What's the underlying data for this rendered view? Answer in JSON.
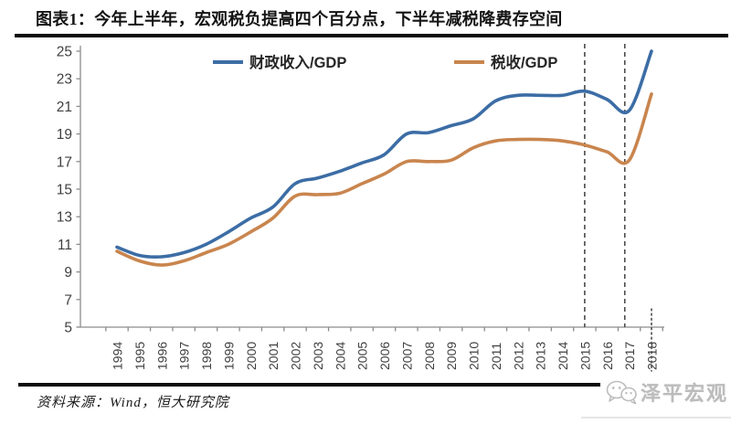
{
  "header": {
    "title": "图表1：今年上半年，宏观税负提高四个百分点，下半年减税降费存空间"
  },
  "chart_data": {
    "type": "line",
    "title": "图表1：今年上半年，宏观税负提高四个百分点，下半年减税降费存空间",
    "categories": [
      "1994",
      "1995",
      "1996",
      "1997",
      "1998",
      "1999",
      "2000",
      "2001",
      "2002",
      "2003",
      "2004",
      "2005",
      "2006",
      "2007",
      "2008",
      "2009",
      "2010",
      "2011",
      "2012",
      "2013",
      "2014",
      "2015",
      "2016",
      "2017",
      "2018"
    ],
    "series": [
      {
        "name": "财政收入/GDP",
        "color": "#3C6DA5",
        "values": [
          10.8,
          10.2,
          10.1,
          10.4,
          11.0,
          11.9,
          12.9,
          13.7,
          15.4,
          15.8,
          16.3,
          16.9,
          17.5,
          19.0,
          19.1,
          19.6,
          20.1,
          21.4,
          21.8,
          21.8,
          21.8,
          22.1,
          21.5,
          20.7,
          25.0
        ]
      },
      {
        "name": "税收/GDP",
        "color": "#C9854E",
        "values": [
          10.5,
          9.8,
          9.5,
          9.8,
          10.4,
          11.0,
          11.9,
          12.9,
          14.5,
          14.6,
          14.7,
          15.4,
          16.1,
          17.0,
          17.0,
          17.1,
          18.0,
          18.5,
          18.6,
          18.6,
          18.5,
          18.2,
          17.7,
          17.1,
          21.9
        ]
      }
    ],
    "xlabel": "",
    "ylabel": "",
    "ylim": [
      5,
      25
    ],
    "yticks": [
      5,
      7,
      9,
      11,
      13,
      15,
      17,
      19,
      21,
      23,
      25
    ],
    "grid": false,
    "legend_position": "top-center",
    "annotations": {
      "dashed_vlines_years": [
        2015,
        2016.8
      ],
      "dotted_vline_year": 2018
    }
  },
  "footer": {
    "source": "资料来源：Wind，恒大研究院",
    "watermark_icon": "wechat-icon",
    "watermark": "泽平宏观"
  },
  "colors": {
    "axis": "#8c8c8c",
    "tick_label": "#3f3f3f",
    "legend_label": "#262626",
    "dashed_line": "#4a4a4a",
    "rule": "#0a0a0a",
    "watermark": "#bcbcbc"
  }
}
